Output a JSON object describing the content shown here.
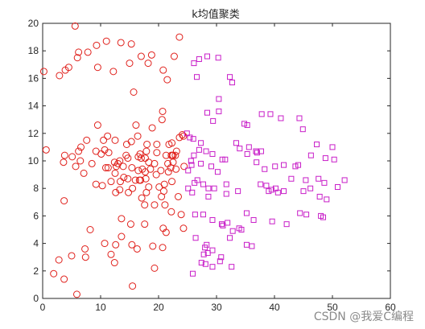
{
  "chart_data": {
    "type": "scatter",
    "title": "k均值聚类",
    "xlabel": "",
    "ylabel": "",
    "xlim": [
      0,
      60
    ],
    "ylim": [
      0,
      20
    ],
    "xticks": [
      "0",
      "10",
      "20",
      "30",
      "40",
      "50",
      "60"
    ],
    "yticks": [
      "0",
      "2",
      "4",
      "6",
      "8",
      "10",
      "12",
      "14",
      "16",
      "18",
      "20"
    ],
    "grid": false,
    "legend": "none",
    "series": [
      {
        "marker": "circle",
        "color": "#e0201b",
        "points": [
          [
            5.6,
            19.8
          ],
          [
            11,
            18.7
          ],
          [
            13.5,
            18.6
          ],
          [
            15.3,
            18.5
          ],
          [
            23.6,
            19
          ],
          [
            9.3,
            18.4
          ],
          [
            0.2,
            16.5
          ],
          [
            2.9,
            16.2
          ],
          [
            3.9,
            16.6
          ],
          [
            4.5,
            16.8
          ],
          [
            6,
            17.5
          ],
          [
            6.2,
            17.9
          ],
          [
            7.8,
            17.9
          ],
          [
            9.5,
            16.8
          ],
          [
            12.2,
            16.5
          ],
          [
            15,
            17.1
          ],
          [
            17,
            17.6
          ],
          [
            18.2,
            17.1
          ],
          [
            18.8,
            17.7
          ],
          [
            20.8,
            16.6
          ],
          [
            21.5,
            15.9
          ],
          [
            22.7,
            17.6
          ],
          [
            15.7,
            15
          ],
          [
            20.7,
            13.6
          ],
          [
            20.6,
            13
          ],
          [
            9.5,
            12.6
          ],
          [
            10.5,
            11.5
          ],
          [
            11.2,
            11.8
          ],
          [
            12.5,
            11.5
          ],
          [
            14.5,
            11.2
          ],
          [
            15.3,
            11.4
          ],
          [
            16.1,
            12.6
          ],
          [
            16.4,
            11.8
          ],
          [
            18.9,
            12.4
          ],
          [
            23.6,
            11.7
          ],
          [
            24.1,
            11.9
          ],
          [
            24.3,
            11.8
          ],
          [
            19.7,
            11.2
          ],
          [
            18,
            11.2
          ],
          [
            7.6,
            11.5
          ],
          [
            6.6,
            11
          ],
          [
            6.2,
            10.7
          ],
          [
            0.6,
            10.8
          ],
          [
            3.8,
            10.4
          ],
          [
            5.1,
            10.3
          ],
          [
            6.5,
            10
          ],
          [
            3.6,
            9.9
          ],
          [
            5.7,
            9.6
          ],
          [
            9.2,
            10.7
          ],
          [
            10.1,
            10.5
          ],
          [
            10.7,
            10.8
          ],
          [
            11.4,
            10.6
          ],
          [
            13.3,
            10
          ],
          [
            12.4,
            9.9
          ],
          [
            13,
            9.8
          ],
          [
            14.7,
            10.2
          ],
          [
            14.4,
            10.4
          ],
          [
            16.5,
            10.3
          ],
          [
            16.8,
            10.5
          ],
          [
            17,
            10.2
          ],
          [
            17.7,
            10.2
          ],
          [
            18.3,
            9.9
          ],
          [
            17.9,
            10.7
          ],
          [
            19.7,
            10.6
          ],
          [
            21.3,
            10.4
          ],
          [
            21.8,
            11.2
          ],
          [
            22.3,
            11.3
          ],
          [
            22.2,
            10.4
          ],
          [
            22.4,
            10.4
          ],
          [
            22.5,
            10.4
          ],
          [
            22.9,
            10.4
          ],
          [
            23.1,
            10.7
          ],
          [
            8.5,
            9.8
          ],
          [
            11.3,
            9.5
          ],
          [
            12.7,
            9.6
          ],
          [
            13.9,
            9.6
          ],
          [
            15.4,
            9.5
          ],
          [
            16.5,
            9.3
          ],
          [
            17.2,
            9.4
          ],
          [
            17.7,
            9.2
          ],
          [
            18.6,
            9.4
          ],
          [
            19.3,
            9.8
          ],
          [
            20.4,
            9.3
          ],
          [
            21.6,
            9.8
          ],
          [
            22.5,
            9.9
          ],
          [
            23,
            9.4
          ],
          [
            24.4,
            9.6
          ],
          [
            10.9,
            9.5
          ],
          [
            12.5,
            9.1
          ],
          [
            14,
            8.8
          ],
          [
            14.7,
            8.7
          ],
          [
            16,
            8.6
          ],
          [
            16.7,
            8.6
          ],
          [
            17.8,
            8.7
          ],
          [
            19.6,
            9
          ],
          [
            21.7,
            9.2
          ],
          [
            22.1,
            9.5
          ],
          [
            7.1,
            9.1
          ],
          [
            9.2,
            8.3
          ],
          [
            10.3,
            8.2
          ],
          [
            11.8,
            8.5
          ],
          [
            13.4,
            8.5
          ],
          [
            15.5,
            8
          ],
          [
            16.9,
            8.6
          ],
          [
            18.3,
            8.1
          ],
          [
            20.1,
            8.1
          ],
          [
            21,
            8.3
          ],
          [
            22.3,
            8.5
          ],
          [
            3.7,
            7.1
          ],
          [
            12.6,
            7.7
          ],
          [
            13.3,
            7.9
          ],
          [
            14.8,
            7.7
          ],
          [
            17.1,
            7.3
          ],
          [
            17.9,
            7.7
          ],
          [
            20.5,
            7.4
          ],
          [
            20.9,
            7.8
          ],
          [
            23.4,
            7.4
          ],
          [
            17.6,
            6.8
          ],
          [
            19.3,
            6.8
          ],
          [
            21.1,
            6.8
          ],
          [
            22.2,
            6.3
          ],
          [
            23.9,
            6.1
          ],
          [
            13.6,
            5.8
          ],
          [
            15.2,
            5.4
          ],
          [
            17.6,
            5.4
          ],
          [
            20.8,
            5.1
          ],
          [
            21.3,
            4.8
          ],
          [
            24.3,
            5.1
          ],
          [
            8.2,
            5
          ],
          [
            10.7,
            4
          ],
          [
            12.6,
            3.9
          ],
          [
            13.6,
            4.5
          ],
          [
            15.4,
            3.9
          ],
          [
            16.3,
            3.6
          ],
          [
            19,
            3.8
          ],
          [
            20.7,
            3.7
          ],
          [
            7.3,
            3.6
          ],
          [
            5,
            3.1
          ],
          [
            2.8,
            2.8
          ],
          [
            7.4,
            3
          ],
          [
            11.8,
            3.2
          ],
          [
            12.4,
            2.6
          ],
          [
            19.3,
            2.2
          ],
          [
            1.9,
            1.8
          ],
          [
            3.7,
            1.4
          ],
          [
            15.5,
            0.9
          ],
          [
            5.9,
            0.3
          ]
        ]
      },
      {
        "marker": "square",
        "color": "#c81ec8",
        "points": [
          [
            26.1,
            17.1
          ],
          [
            27,
            17.4
          ],
          [
            28.4,
            17.6
          ],
          [
            30.3,
            17.5
          ],
          [
            26.6,
            16.1
          ],
          [
            32.3,
            16.1
          ],
          [
            32.7,
            15.7
          ],
          [
            30.4,
            14.5
          ],
          [
            28.4,
            13.5
          ],
          [
            30.4,
            13.6
          ],
          [
            29.4,
            12.9
          ],
          [
            34.8,
            12.7
          ],
          [
            35.3,
            12.6
          ],
          [
            37.8,
            13.4
          ],
          [
            39.3,
            13.4
          ],
          [
            41.1,
            13.1
          ],
          [
            44.3,
            13.1
          ],
          [
            44.9,
            12.3
          ],
          [
            47.3,
            11.2
          ],
          [
            50,
            11
          ],
          [
            24.9,
            12
          ],
          [
            25.4,
            11.7
          ],
          [
            26,
            11.6
          ],
          [
            27.3,
            11.3
          ],
          [
            33.4,
            11.3
          ],
          [
            34,
            10.9
          ],
          [
            35.6,
            11
          ],
          [
            36.8,
            10.7
          ],
          [
            35.3,
            10.5
          ],
          [
            26.1,
            10.4
          ],
          [
            27,
            10.8
          ],
          [
            28.2,
            10.7
          ],
          [
            29.3,
            10.5
          ],
          [
            31,
            10.1
          ],
          [
            31.5,
            10.1
          ],
          [
            25.6,
            10
          ],
          [
            25.7,
            9.7
          ],
          [
            27.3,
            9.8
          ],
          [
            29.1,
            9.6
          ],
          [
            30.2,
            9.2
          ],
          [
            37,
            10.6
          ],
          [
            37.7,
            10.7
          ],
          [
            36.9,
            9.9
          ],
          [
            38.3,
            9.4
          ],
          [
            40.1,
            9.6
          ],
          [
            41.6,
            9.7
          ],
          [
            43.6,
            9.6
          ],
          [
            44.1,
            9.7
          ],
          [
            46.3,
            10.4
          ],
          [
            48.8,
            10.2
          ],
          [
            50.3,
            10.1
          ],
          [
            25.1,
            9.3
          ],
          [
            26.7,
            8.6
          ],
          [
            26.2,
            8.4
          ],
          [
            25.1,
            8
          ],
          [
            27.7,
            8.3
          ],
          [
            28.6,
            8
          ],
          [
            29.6,
            8
          ],
          [
            31.7,
            8.3
          ],
          [
            25.8,
            7.7
          ],
          [
            28.6,
            7.4
          ],
          [
            31.7,
            7.6
          ],
          [
            33.7,
            7.8
          ],
          [
            39,
            7.8
          ],
          [
            40.6,
            7.7
          ],
          [
            40.2,
            8
          ],
          [
            41.6,
            7.8
          ],
          [
            42.9,
            8.7
          ],
          [
            45.4,
            8.6
          ],
          [
            46.2,
            8
          ],
          [
            47.6,
            8.7
          ],
          [
            48.6,
            8.4
          ],
          [
            50.9,
            8.1
          ],
          [
            52.1,
            8.6
          ],
          [
            37.6,
            8.3
          ],
          [
            38.6,
            8.2
          ],
          [
            39.5,
            7.9
          ],
          [
            45,
            7.8
          ],
          [
            47.8,
            7.4
          ],
          [
            49,
            7.2
          ],
          [
            44.4,
            6.2
          ],
          [
            45.5,
            6.1
          ],
          [
            48,
            6
          ],
          [
            48.4,
            5.9
          ],
          [
            42.1,
            5.4
          ],
          [
            30.9,
            5.4
          ],
          [
            31.9,
            5.5
          ],
          [
            35.2,
            6.2
          ],
          [
            36.4,
            5.7
          ],
          [
            39.6,
            5.6
          ],
          [
            26.3,
            6.1
          ],
          [
            27.7,
            6.1
          ],
          [
            29.3,
            5.7
          ],
          [
            31.1,
            5.3
          ],
          [
            32.8,
            4.9
          ],
          [
            33.9,
            5.1
          ],
          [
            34.3,
            5
          ],
          [
            32.3,
            4.4
          ],
          [
            35.2,
            3.9
          ],
          [
            36.1,
            3.8
          ],
          [
            26.4,
            4.4
          ],
          [
            28.3,
            3.9
          ],
          [
            28,
            3.7
          ],
          [
            28.5,
            3.3
          ],
          [
            30.8,
            3
          ],
          [
            29.3,
            3.5
          ],
          [
            27.8,
            3.2
          ],
          [
            27.4,
            2.6
          ],
          [
            28.1,
            2.5
          ],
          [
            29.3,
            2.3
          ],
          [
            30.6,
            2.7
          ],
          [
            32.6,
            2.3
          ],
          [
            25.9,
            1.8
          ]
        ]
      }
    ]
  },
  "watermark": "CSDN @我爱C编程"
}
